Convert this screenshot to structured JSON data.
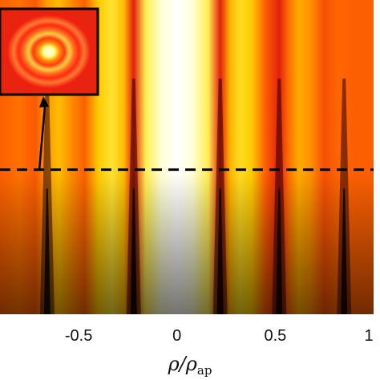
{
  "chart_data": {
    "type": "heatmap",
    "title": "",
    "xlabel": {
      "main": "ρ/ρ",
      "sub": "ap"
    },
    "ylabel": "",
    "xlim": [
      -0.9,
      1.0
    ],
    "x_ticks": [
      {
        "value": -0.5,
        "label": "-0.5"
      },
      {
        "value": 0,
        "label": "0"
      },
      {
        "value": 0.5,
        "label": "0.5"
      },
      {
        "value": 1,
        "label": "1"
      }
    ],
    "colormap": [
      "#000000",
      "#8b0000",
      "#e8230f",
      "#ff6a00",
      "#ffcc00",
      "#ffff7a",
      "#ffffff"
    ],
    "intensity_profile": {
      "x": [
        -0.9,
        -0.8,
        -0.72,
        -0.66,
        -0.6,
        -0.53,
        -0.47,
        -0.4,
        -0.33,
        -0.27,
        -0.22,
        -0.16,
        -0.08,
        0,
        0.08,
        0.16,
        0.22,
        0.27,
        0.32,
        0.38,
        0.45,
        0.52,
        0.57,
        0.62,
        0.68,
        0.75,
        0.82,
        0.9,
        1.0
      ],
      "value": [
        0.3,
        0.35,
        0.28,
        0.45,
        0.52,
        0.4,
        0.3,
        0.55,
        0.65,
        0.52,
        0.1,
        0.7,
        0.93,
        1.0,
        0.93,
        0.7,
        0.1,
        0.5,
        0.62,
        0.55,
        0.3,
        0.1,
        0.35,
        0.48,
        0.42,
        0.25,
        0.32,
        0.3,
        0.3
      ]
    },
    "dark_fringe_x": [
      -0.66,
      -0.22,
      0.22,
      0.52,
      0.85
    ],
    "cut_line": {
      "y_fraction": 0.42,
      "style": "dashed",
      "color": "#000000"
    },
    "inset": {
      "description_shown": "ring pattern",
      "pointer_x": -0.7,
      "pointer_to": "cut_line"
    }
  }
}
